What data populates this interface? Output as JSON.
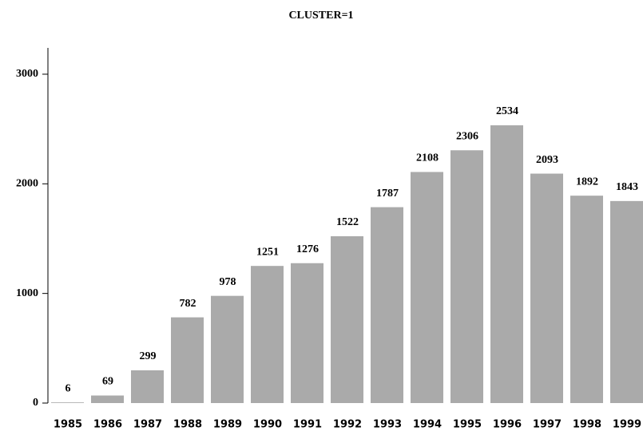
{
  "chart_data": {
    "type": "bar",
    "title": "CLUSTER=1",
    "categories": [
      "1985",
      "1986",
      "1987",
      "1988",
      "1989",
      "1990",
      "1991",
      "1992",
      "1993",
      "1994",
      "1995",
      "1996",
      "1997",
      "1998",
      "1999"
    ],
    "values": [
      6,
      69,
      299,
      782,
      978,
      1251,
      1276,
      1522,
      1787,
      2108,
      2306,
      2534,
      2093,
      1892,
      1843
    ],
    "color": "#aaaaaa",
    "ylim": [
      0,
      3240
    ],
    "yticks": [
      0,
      1000,
      2000,
      3000
    ],
    "grid": false
  }
}
